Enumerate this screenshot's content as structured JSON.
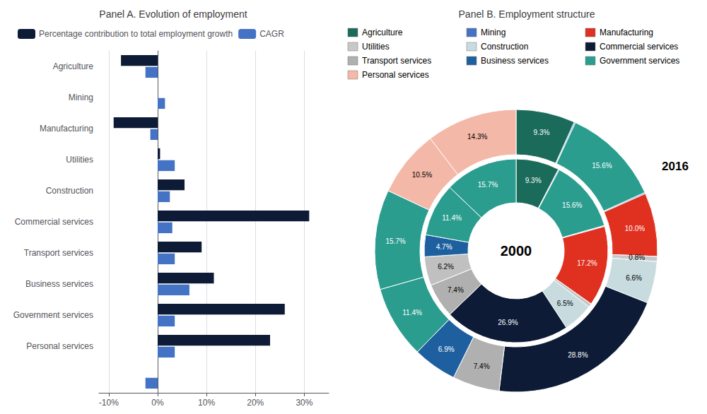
{
  "chart_data": [
    {
      "type": "bar",
      "title": "Panel A. Evolution of employment",
      "orientation": "horizontal",
      "categories": [
        "Agriculture",
        "Mining",
        "Manufacturing",
        "Utilities",
        "Construction",
        "Commercial services",
        "Transport services",
        "Business services",
        "Government services",
        "Personal services",
        null
      ],
      "series": [
        {
          "name": "Percentage contribution to total employment growth",
          "color": "#0d1b36",
          "values": [
            -7.5,
            0.0,
            -9.0,
            0.5,
            5.5,
            31.0,
            9.0,
            11.5,
            26.0,
            23.0,
            null
          ]
        },
        {
          "name": "CAGR",
          "color": "#4472c4",
          "values": [
            -2.5,
            1.5,
            -1.5,
            3.5,
            2.5,
            3.0,
            3.5,
            6.5,
            3.5,
            3.5,
            -2.5
          ]
        }
      ],
      "xlim": [
        -12,
        35
      ],
      "xticks": [
        {
          "value": -10,
          "label": "-10%"
        },
        {
          "value": 0,
          "label": "0%"
        },
        {
          "value": 10,
          "label": "10%"
        },
        {
          "value": 20,
          "label": "20%"
        },
        {
          "value": 30,
          "label": "30%"
        }
      ],
      "grid": true
    },
    {
      "type": "pie",
      "title": "Panel B. Employment structure",
      "data_labels": true,
      "series": [
        {
          "name": "2000",
          "values": [
            9.3,
            0.2,
            15.6,
            0.2,
            17.2,
            0.8,
            6.5,
            26.9,
            7.4,
            6.2,
            4.7,
            11.4,
            15.7
          ],
          "value_labels": [
            "9.3%",
            null,
            "15.6%",
            null,
            "17.2%",
            null,
            "6.5%",
            "26.9%",
            "7.4%",
            "6.2%",
            "4.7%",
            "11.4%",
            "15.7%"
          ],
          "colors": [
            "#1a6b5a",
            "#4472c4",
            "#2a9d8f",
            "#5b9bd5",
            "#e03020",
            "#c8c8c8",
            "#c8dce0",
            "#0d1b36",
            "#b0b0b0",
            "#c0c0c0",
            "#1e5fa0",
            "#2a9d8f",
            "#2a9d8f"
          ]
        },
        {
          "name": "2016",
          "values": [
            9.3,
            0.2,
            15.6,
            0.2,
            10.0,
            0.8,
            6.6,
            28.8,
            7.4,
            6.9,
            11.4,
            15.7,
            10.5,
            14.3
          ],
          "value_labels": [
            "9.3%",
            null,
            "15.6%",
            null,
            "10.0%",
            "0.8%",
            "6.6%",
            "28.8%",
            "7.4%",
            "6.9%",
            "11.4%",
            "15.7%",
            "10.5%",
            "14.3%"
          ],
          "colors": [
            "#1a6b5a",
            "#5b9bd5",
            "#2a9d8f",
            "#5b9bd5",
            "#e03020",
            "#c8c8c8",
            "#c8dce0",
            "#0d1b36",
            "#b0b0b0",
            "#1e5fa0",
            "#2a9d8f",
            "#2a9d8f",
            "#f4b8a8",
            "#f4b8a8"
          ]
        }
      ],
      "legend_items": [
        {
          "name": "Agriculture",
          "color": "#1a6b5a"
        },
        {
          "name": "Mining",
          "color": "#4472c4"
        },
        {
          "name": "Manufacturing",
          "color": "#e03020"
        },
        {
          "name": "Utilities",
          "color": "#c8c8c8"
        },
        {
          "name": "Construction",
          "color": "#c8dce0"
        },
        {
          "name": "Commercial services",
          "color": "#0d1b36"
        },
        {
          "name": "Transport services",
          "color": "#b0b0b0"
        },
        {
          "name": "Business services",
          "color": "#1e5fa0"
        },
        {
          "name": "Government services",
          "color": "#2a9d8f"
        },
        {
          "name": "Personal services",
          "color": "#f4b8a8"
        }
      ]
    }
  ]
}
